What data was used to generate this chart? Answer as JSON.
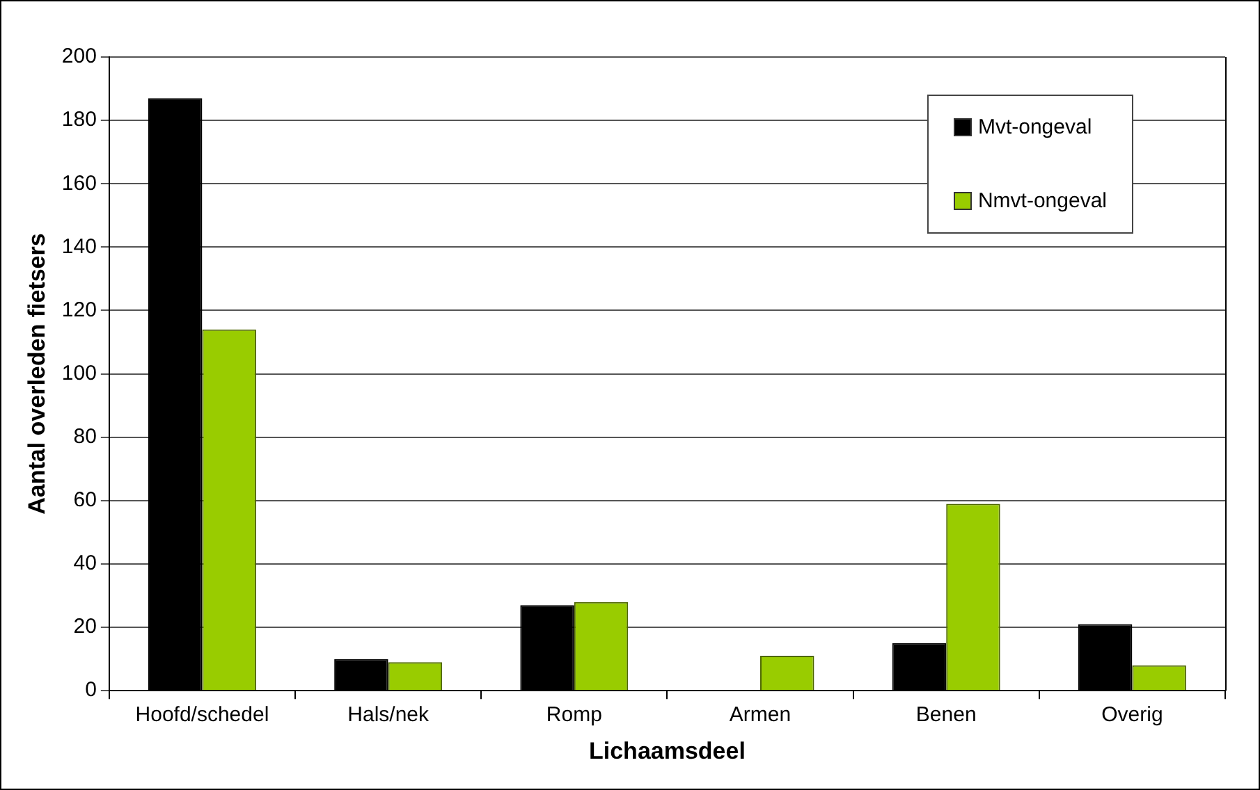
{
  "chart_data": {
    "type": "bar",
    "xlabel": "Lichaamsdeel",
    "ylabel": "Aantal overleden fietsers",
    "categories": [
      "Hoofd/schedel",
      "Hals/nek",
      "Romp",
      "Armen",
      "Benen",
      "Overig"
    ],
    "series": [
      {
        "name": "Mvt-ongeval",
        "color": "#000000",
        "values": [
          187,
          10,
          27,
          0,
          15,
          21
        ]
      },
      {
        "name": "Nmvt-ongeval",
        "color": "#99cc00",
        "values": [
          114,
          9,
          28,
          11,
          59,
          8
        ]
      }
    ],
    "ylim": [
      0,
      200
    ],
    "yticks": [
      0,
      20,
      40,
      60,
      80,
      100,
      120,
      140,
      160,
      180,
      200
    ],
    "grid": "y",
    "legend": "top right"
  }
}
